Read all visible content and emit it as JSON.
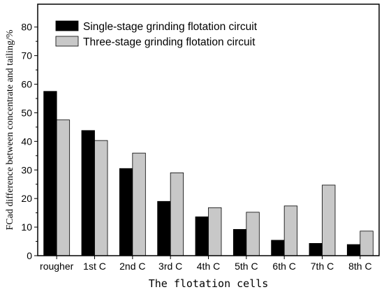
{
  "chart_data": {
    "type": "bar",
    "xlabel": "The flotation cells",
    "ylabel": "FCad difference between concentrate and tailing/%",
    "categories": [
      "rougher",
      "1st C",
      "2nd C",
      "3rd C",
      "4th C",
      "5th C",
      "6th C",
      "7th C",
      "8th C"
    ],
    "series": [
      {
        "name": "Single-stage grinding flotation circuit",
        "color": "#000000",
        "values": [
          57.5,
          43.8,
          30.5,
          19.0,
          13.6,
          9.2,
          5.4,
          4.3,
          3.9
        ]
      },
      {
        "name": "Three-stage grinding flotation circuit",
        "color": "#c8c8c8",
        "values": [
          47.5,
          40.3,
          35.9,
          29.0,
          16.8,
          15.2,
          17.4,
          24.7,
          8.6
        ]
      }
    ],
    "ylim": [
      0,
      88
    ],
    "yticks": [
      0,
      10,
      20,
      30,
      40,
      50,
      60,
      70,
      80
    ],
    "legend": "top-left",
    "grid": false
  }
}
